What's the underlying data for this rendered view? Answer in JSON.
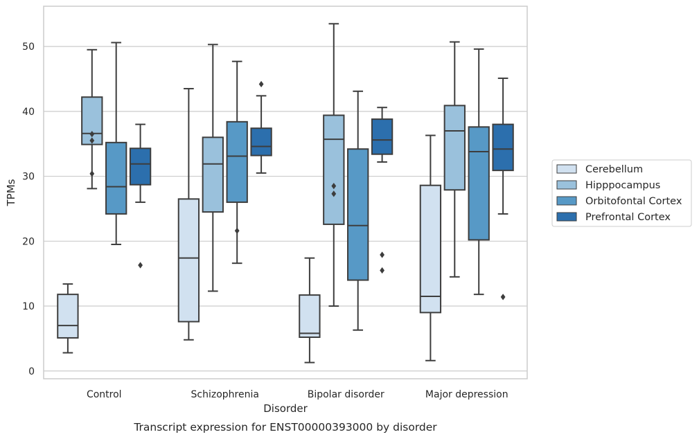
{
  "caption": "Transcript expression for ENST00000393000 by disorder",
  "chart_data": {
    "type": "boxplot",
    "xlabel": "Disorder",
    "ylabel": "TPMs",
    "ylim": [
      -1.2,
      56.2
    ],
    "yticks": [
      0,
      10,
      20,
      30,
      40,
      50
    ],
    "grid": true,
    "legend_position": "center-right",
    "categories": [
      "Control",
      "Schizophrenia",
      "Bipolar disorder",
      "Major depression"
    ],
    "series": [
      {
        "name": "Cerebellum",
        "color": "#d1e1f0",
        "boxes": [
          {
            "whislo": 2.8,
            "q1": 5.1,
            "med": 7.0,
            "q3": 11.8,
            "whishi": 13.4,
            "fliers": []
          },
          {
            "whislo": 4.8,
            "q1": 7.6,
            "med": 17.4,
            "q3": 26.5,
            "whishi": 43.5,
            "fliers": []
          },
          {
            "whislo": 1.3,
            "q1": 5.2,
            "med": 5.8,
            "q3": 11.7,
            "whishi": 17.4,
            "fliers": []
          },
          {
            "whislo": 1.6,
            "q1": 9.0,
            "med": 11.5,
            "q3": 28.6,
            "whishi": 36.3,
            "fliers": []
          }
        ]
      },
      {
        "name": "Hipppocampus",
        "color": "#9ac1dc",
        "boxes": [
          {
            "whislo": 28.1,
            "q1": 34.9,
            "med": 36.6,
            "q3": 42.2,
            "whishi": 49.5,
            "fliers": [
              30.4,
              35.5,
              36.5
            ]
          },
          {
            "whislo": 12.3,
            "q1": 24.5,
            "med": 31.9,
            "q3": 36.0,
            "whishi": 50.3,
            "fliers": []
          },
          {
            "whislo": 10.0,
            "q1": 22.6,
            "med": 35.7,
            "q3": 39.4,
            "whishi": 53.5,
            "fliers": [
              27.3,
              28.5
            ]
          },
          {
            "whislo": 14.5,
            "q1": 27.9,
            "med": 37.0,
            "q3": 40.9,
            "whishi": 50.7,
            "fliers": []
          }
        ]
      },
      {
        "name": "Orbitofontal Cortex",
        "color": "#5799c6",
        "boxes": [
          {
            "whislo": 19.5,
            "q1": 24.2,
            "med": 28.4,
            "q3": 35.2,
            "whishi": 50.6,
            "fliers": []
          },
          {
            "whislo": 16.6,
            "q1": 26.0,
            "med": 33.1,
            "q3": 38.4,
            "whishi": 47.7,
            "fliers": [
              21.6
            ]
          },
          {
            "whislo": 6.3,
            "q1": 14.0,
            "med": 22.4,
            "q3": 34.2,
            "whishi": 43.1,
            "fliers": []
          },
          {
            "whislo": 11.8,
            "q1": 20.2,
            "med": 33.8,
            "q3": 37.6,
            "whishi": 49.6,
            "fliers": []
          }
        ]
      },
      {
        "name": "Prefrontal Cortex",
        "color": "#2c6fad",
        "boxes": [
          {
            "whislo": 26.0,
            "q1": 28.7,
            "med": 31.9,
            "q3": 34.3,
            "whishi": 38.0,
            "fliers": [
              16.3
            ]
          },
          {
            "whislo": 30.5,
            "q1": 33.2,
            "med": 34.6,
            "q3": 37.4,
            "whishi": 42.4,
            "fliers": [
              44.2
            ]
          },
          {
            "whislo": 32.2,
            "q1": 33.4,
            "med": 35.6,
            "q3": 38.8,
            "whishi": 40.6,
            "fliers": [
              15.5,
              17.9
            ]
          },
          {
            "whislo": 24.2,
            "q1": 30.9,
            "med": 34.2,
            "q3": 38.0,
            "whishi": 45.1,
            "fliers": [
              11.4
            ]
          }
        ]
      }
    ]
  }
}
